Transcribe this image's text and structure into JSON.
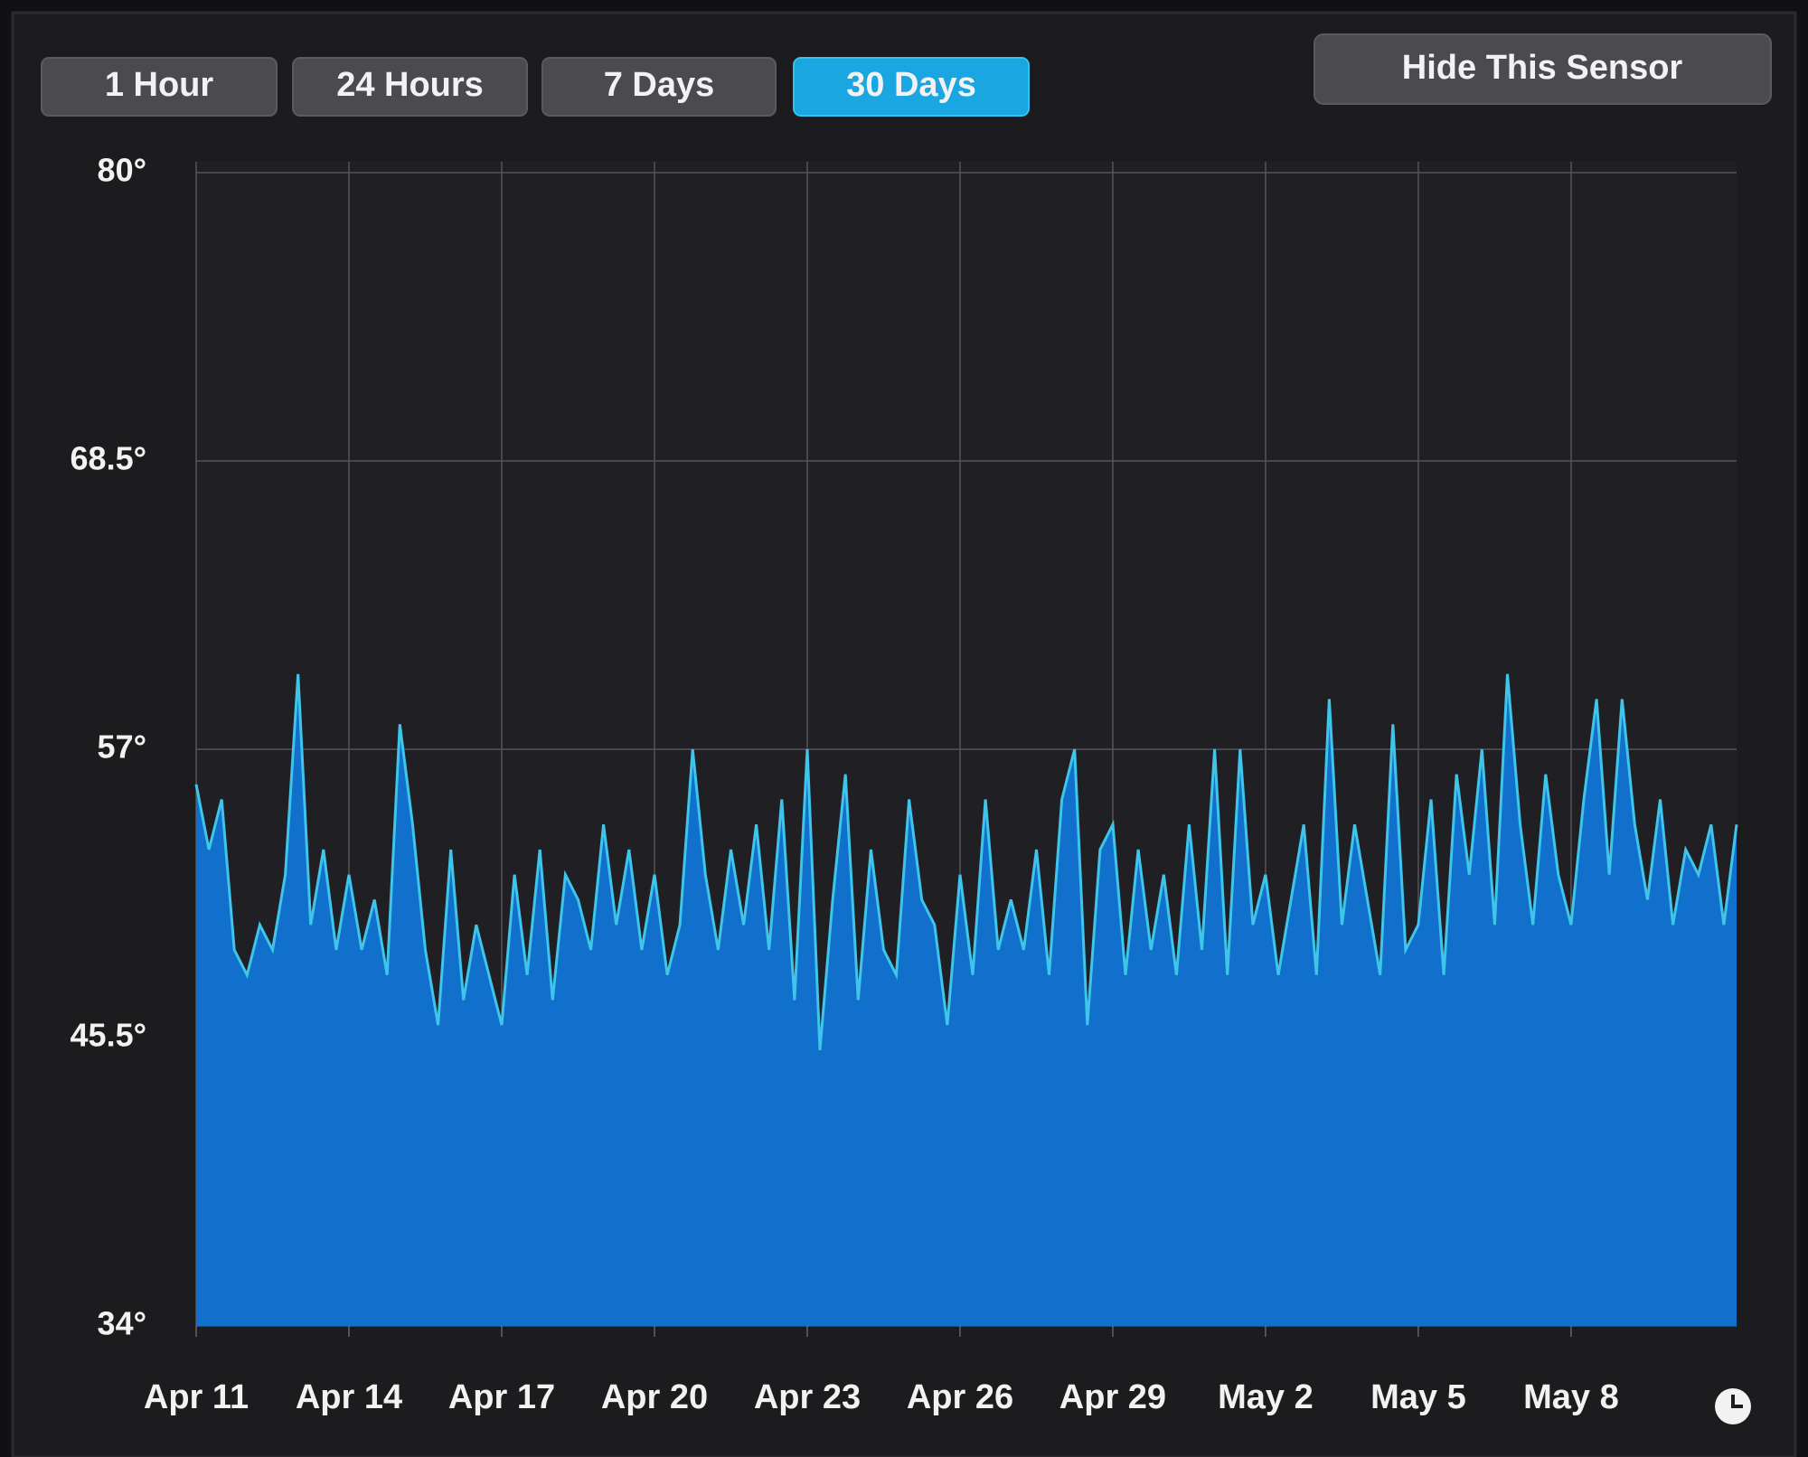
{
  "buttons": [
    "1 Hour",
    "24 Hours",
    "7 Days",
    "30 Days"
  ],
  "active_button": 3,
  "hide_button": "Hide This Sensor",
  "chart_data": {
    "type": "area",
    "color": "#1170cc",
    "line_color": "#3fc4ea",
    "grid": true,
    "xlim": [
      0,
      30.25
    ],
    "ylim": [
      34,
      80
    ],
    "yticks": [
      {
        "value": 34,
        "label": "34°"
      },
      {
        "value": 45.5,
        "label": "45.5°"
      },
      {
        "value": 57,
        "label": "57°"
      },
      {
        "value": 68.5,
        "label": "68.5°"
      },
      {
        "value": 80,
        "label": "80°"
      }
    ],
    "xticks": [
      {
        "value": 0,
        "label": "Apr 11"
      },
      {
        "value": 3,
        "label": "Apr 14"
      },
      {
        "value": 6,
        "label": "Apr 17"
      },
      {
        "value": 9,
        "label": "Apr 20"
      },
      {
        "value": 12,
        "label": "Apr 23"
      },
      {
        "value": 15,
        "label": "Apr 26"
      },
      {
        "value": 18,
        "label": "Apr 29"
      },
      {
        "value": 21,
        "label": "May 2"
      },
      {
        "value": 24,
        "label": "May 5"
      },
      {
        "value": 27,
        "label": "May 8"
      }
    ],
    "x": [
      0,
      0.25,
      0.5,
      0.75,
      1,
      1.25,
      1.5,
      1.75,
      2,
      2.25,
      2.5,
      2.75,
      3,
      3.25,
      3.5,
      3.75,
      4,
      4.25,
      4.5,
      4.75,
      5,
      5.25,
      5.5,
      5.75,
      6,
      6.25,
      6.5,
      6.75,
      7,
      7.25,
      7.5,
      7.75,
      8,
      8.25,
      8.5,
      8.75,
      9,
      9.25,
      9.5,
      9.75,
      10,
      10.25,
      10.5,
      10.75,
      11,
      11.25,
      11.5,
      11.75,
      12,
      12.25,
      12.5,
      12.75,
      13,
      13.25,
      13.5,
      13.75,
      14,
      14.25,
      14.5,
      14.75,
      15,
      15.25,
      15.5,
      15.75,
      16,
      16.25,
      16.5,
      16.75,
      17,
      17.25,
      17.5,
      17.75,
      18,
      18.25,
      18.5,
      18.75,
      19,
      19.25,
      19.5,
      19.75,
      20,
      20.25,
      20.5,
      20.75,
      21,
      21.25,
      21.5,
      21.75,
      22,
      22.25,
      22.5,
      22.75,
      23,
      23.25,
      23.5,
      23.75,
      24,
      24.25,
      24.5,
      24.75,
      25,
      25.25,
      25.5,
      25.75,
      26,
      26.25,
      26.5,
      26.75,
      27,
      27.25,
      27.5,
      27.75,
      28,
      28.25,
      28.5,
      28.75,
      29,
      29.25,
      29.5,
      29.75,
      30,
      30.25
    ],
    "values": [
      55.6,
      53,
      55,
      49,
      48,
      50,
      49,
      52,
      60,
      50,
      53,
      49,
      52,
      49,
      51,
      48,
      58,
      54,
      49,
      46,
      53,
      47,
      50,
      48,
      46,
      52,
      48,
      53,
      47,
      52,
      51,
      49,
      54,
      50,
      53,
      49,
      52,
      48,
      50,
      57,
      52,
      49,
      53,
      50,
      54,
      49,
      55,
      47,
      57,
      45,
      51,
      56,
      47,
      53,
      49,
      48,
      55,
      51,
      50,
      46,
      52,
      48,
      55,
      49,
      51,
      49,
      53,
      48,
      55,
      57,
      46,
      53,
      54,
      48,
      53,
      49,
      52,
      48,
      54,
      49,
      57,
      48,
      57,
      50,
      52,
      48,
      51,
      54,
      48,
      59,
      50,
      54,
      51,
      48,
      58,
      49,
      50,
      55,
      48,
      56,
      52,
      57,
      50,
      60,
      54,
      50,
      56,
      52,
      50,
      55,
      59,
      52,
      59,
      54,
      51,
      55,
      50,
      53,
      52,
      54,
      50,
      54
    ]
  }
}
